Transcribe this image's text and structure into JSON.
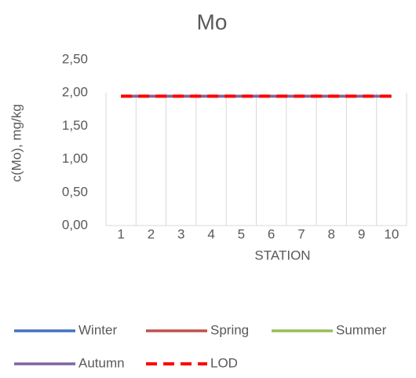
{
  "chart_data": {
    "type": "line",
    "title": "Mo",
    "x_label": "STATION",
    "y_label": "c(Mo), mg/kg",
    "categories": [
      "1",
      "2",
      "3",
      "4",
      "5",
      "6",
      "7",
      "8",
      "9",
      "10"
    ],
    "series": [
      {
        "name": "Winter",
        "color": "#4472c4",
        "values": [
          1.95,
          1.95,
          1.95,
          1.95,
          1.95,
          1.95,
          1.95,
          1.95,
          1.95,
          1.95
        ]
      },
      {
        "name": "Spring",
        "color": "#c0504d",
        "values": [
          1.95,
          1.95,
          1.95,
          1.95,
          1.95,
          1.95,
          1.95,
          1.95,
          1.95,
          1.95
        ]
      },
      {
        "name": "Summer",
        "color": "#9bbb59",
        "values": [
          1.95,
          1.95,
          1.95,
          1.95,
          1.95,
          1.95,
          1.95,
          1.95,
          1.95,
          1.95
        ]
      },
      {
        "name": "Autumn",
        "color": "#8064a2",
        "values": [
          1.95,
          1.95,
          1.95,
          1.95,
          1.95,
          1.95,
          1.95,
          1.95,
          1.95,
          1.95
        ]
      },
      {
        "name": "LOD",
        "color": "#ff0000",
        "dashed": true,
        "values": [
          1.95,
          1.95,
          1.95,
          1.95,
          1.95,
          1.95,
          1.95,
          1.95,
          1.95,
          1.95
        ]
      }
    ],
    "ylim": [
      0,
      2.5
    ],
    "yticks": [
      {
        "value": 0,
        "label": "0,00"
      },
      {
        "value": 0.5,
        "label": "0,50"
      },
      {
        "value": 1,
        "label": "1,00"
      },
      {
        "value": 1.5,
        "label": "1,50"
      },
      {
        "value": 2,
        "label": "2,00"
      },
      {
        "value": 2.5,
        "label": "2,50"
      }
    ],
    "grid": true,
    "legend": "bottom"
  }
}
